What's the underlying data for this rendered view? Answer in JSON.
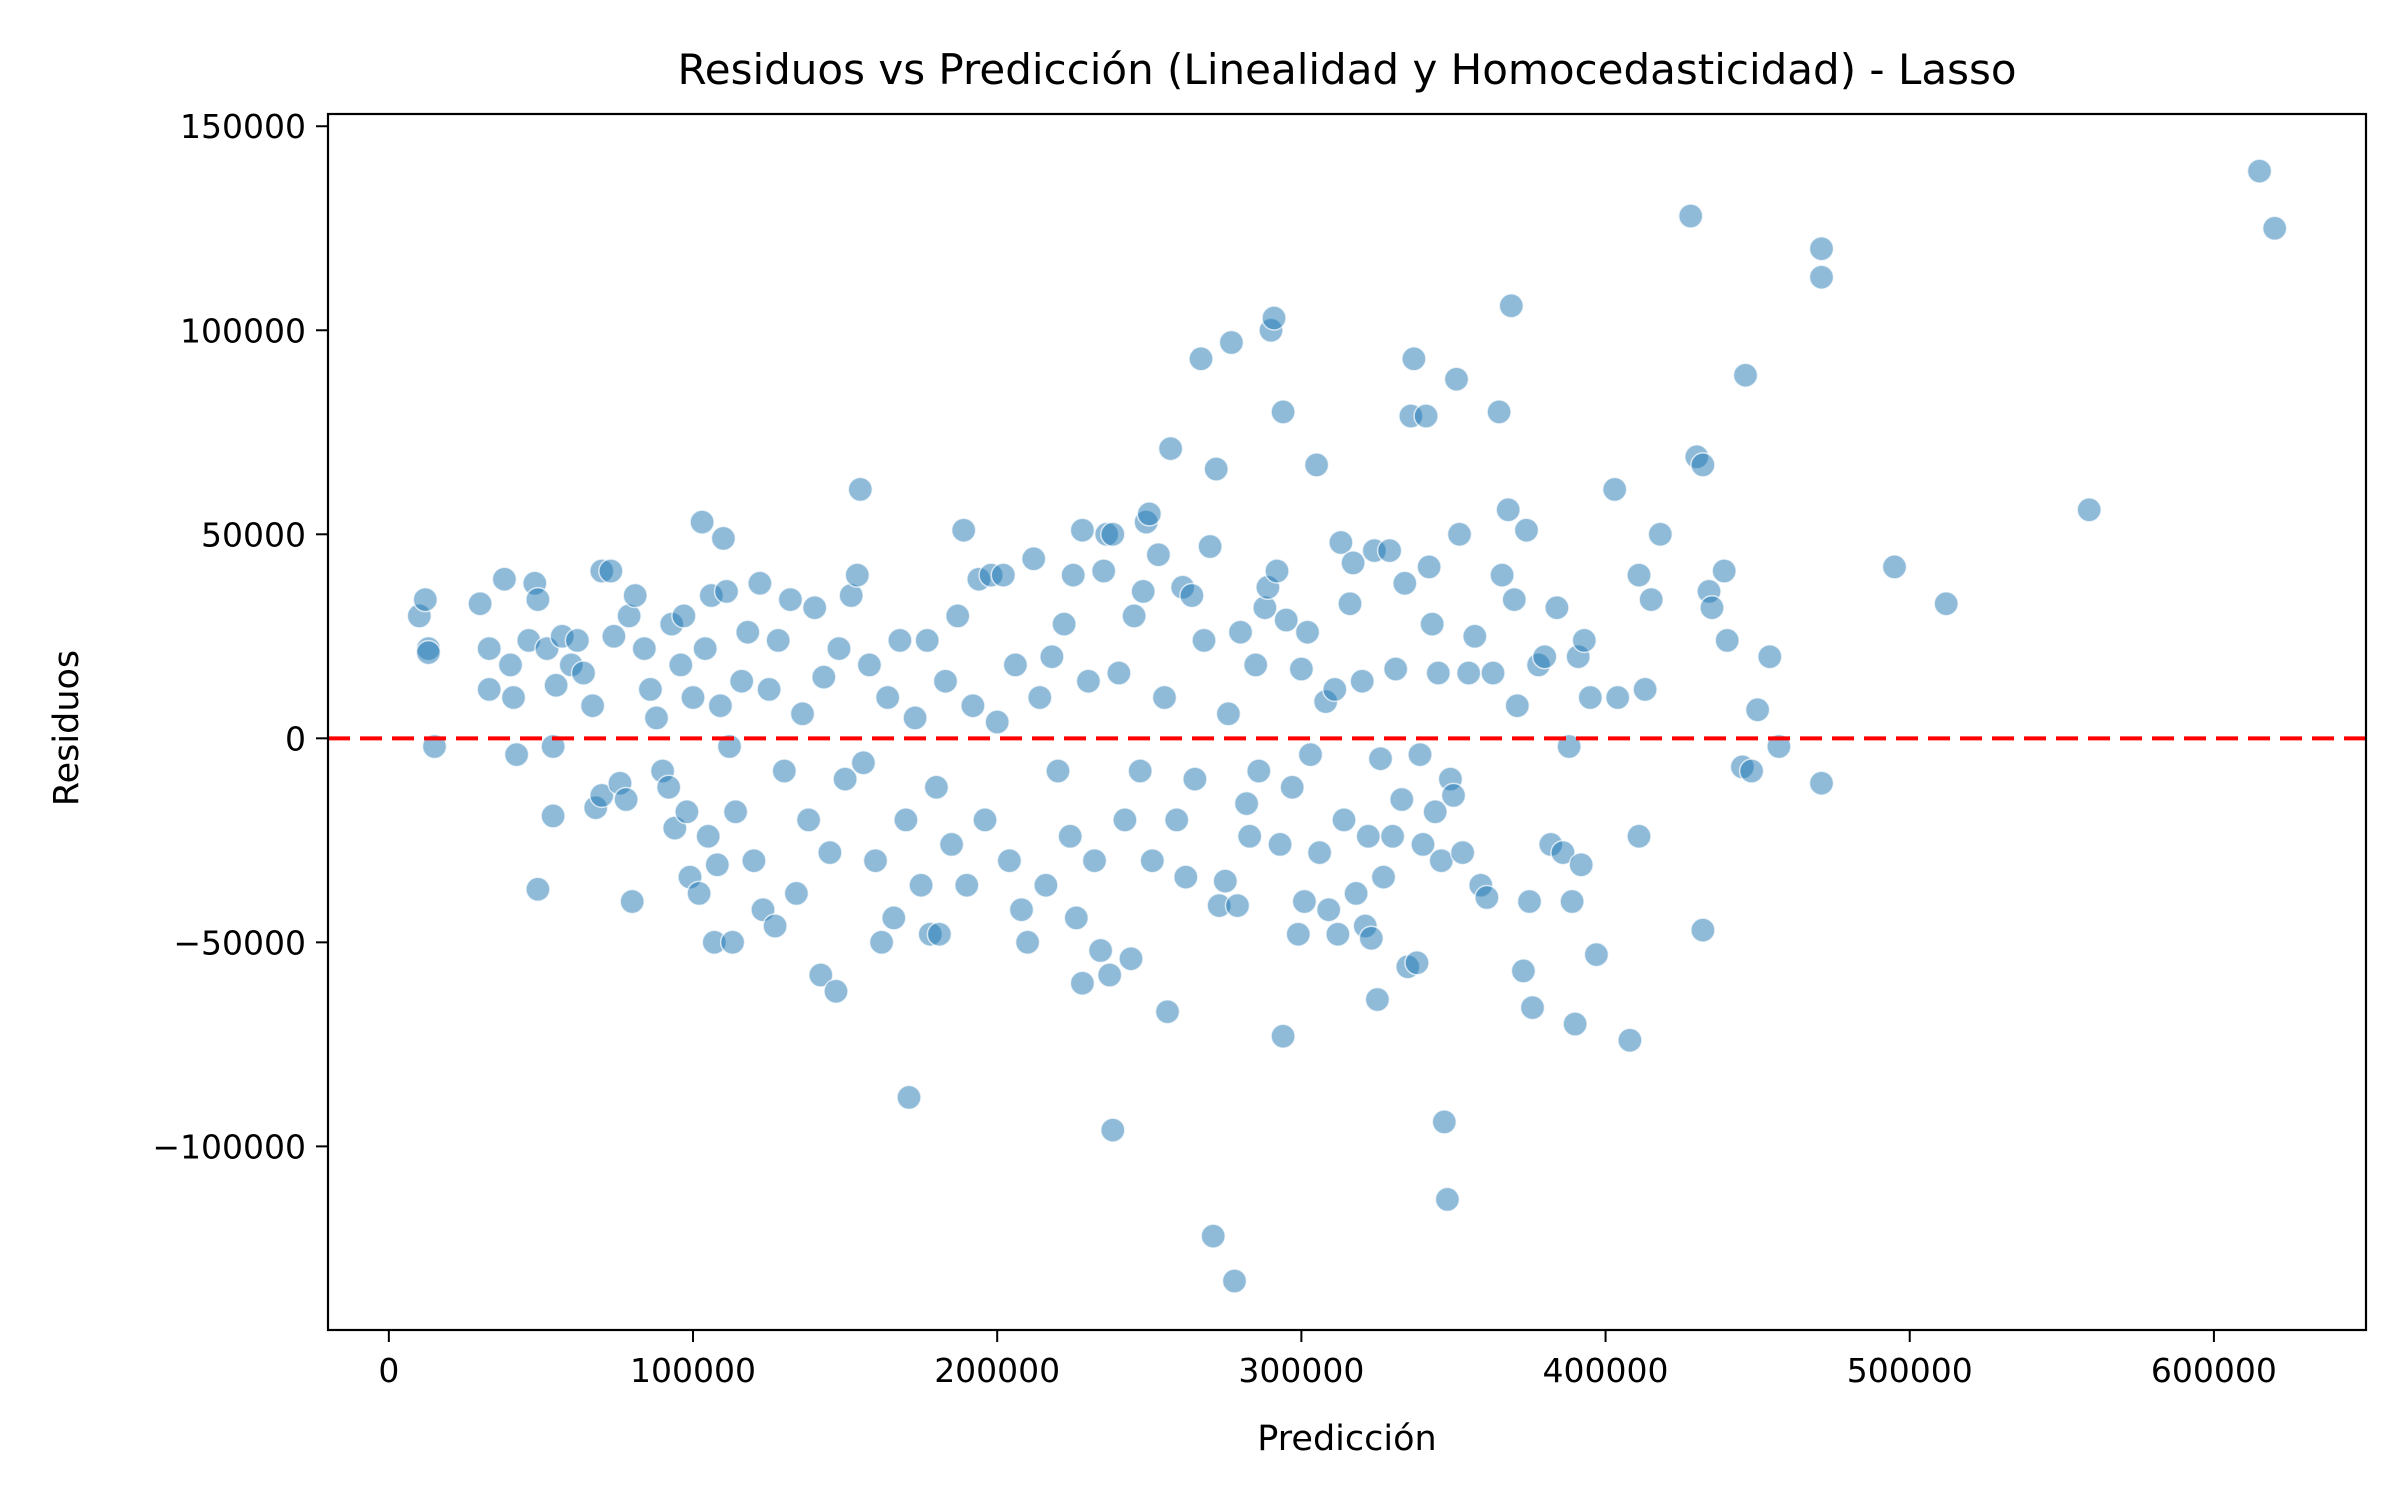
{
  "chart_data": {
    "type": "scatter",
    "title": "Residuos vs Predicción (Linealidad y Homocedasticidad) - Lasso",
    "xlabel": "Predicción",
    "ylabel": "Residuos",
    "xlim": [
      -20000,
      650000
    ],
    "ylim": [
      -145000,
      153000
    ],
    "xticks": [
      0,
      100000,
      200000,
      300000,
      400000,
      500000,
      600000
    ],
    "xtick_labels": [
      "0",
      "100000",
      "200000",
      "300000",
      "400000",
      "500000",
      "600000"
    ],
    "yticks": [
      -100000,
      -50000,
      0,
      50000,
      100000,
      150000
    ],
    "ytick_labels": [
      "−100000",
      "−50000",
      "0",
      "50000",
      "100000",
      "150000"
    ],
    "reference_line": {
      "y": 0,
      "color": "#ff0000",
      "style": "dashed"
    },
    "point_color": "#1f77b4",
    "grid": false,
    "legend": "none",
    "series": [
      {
        "points": [
          [
            10000,
            30000
          ],
          [
            12000,
            34000
          ],
          [
            13000,
            22000
          ],
          [
            13000,
            21000
          ],
          [
            15000,
            -2000
          ],
          [
            30000,
            33000
          ],
          [
            33000,
            22000
          ],
          [
            33000,
            12000
          ],
          [
            38000,
            39000
          ],
          [
            40000,
            18000
          ],
          [
            41000,
            10000
          ],
          [
            42000,
            -4000
          ],
          [
            46000,
            24000
          ],
          [
            48000,
            38000
          ],
          [
            49000,
            34000
          ],
          [
            49000,
            -37000
          ],
          [
            52000,
            22000
          ],
          [
            54000,
            -2000
          ],
          [
            54000,
            -19000
          ],
          [
            55000,
            13000
          ],
          [
            57000,
            25000
          ],
          [
            60000,
            18000
          ],
          [
            62000,
            24000
          ],
          [
            64000,
            16000
          ],
          [
            67000,
            8000
          ],
          [
            68000,
            -17000
          ],
          [
            70000,
            -14000
          ],
          [
            70000,
            41000
          ],
          [
            73000,
            41000
          ],
          [
            74000,
            25000
          ],
          [
            76000,
            -11000
          ],
          [
            78000,
            -15000
          ],
          [
            79000,
            30000
          ],
          [
            80000,
            -40000
          ],
          [
            81000,
            35000
          ],
          [
            84000,
            22000
          ],
          [
            86000,
            12000
          ],
          [
            88000,
            5000
          ],
          [
            90000,
            -8000
          ],
          [
            92000,
            -12000
          ],
          [
            93000,
            28000
          ],
          [
            94000,
            -22000
          ],
          [
            96000,
            18000
          ],
          [
            97000,
            30000
          ],
          [
            98000,
            -18000
          ],
          [
            99000,
            -34000
          ],
          [
            100000,
            10000
          ],
          [
            102000,
            -38000
          ],
          [
            103000,
            53000
          ],
          [
            104000,
            22000
          ],
          [
            105000,
            -24000
          ],
          [
            106000,
            35000
          ],
          [
            107000,
            -50000
          ],
          [
            108000,
            -31000
          ],
          [
            109000,
            8000
          ],
          [
            110000,
            49000
          ],
          [
            111000,
            36000
          ],
          [
            112000,
            -2000
          ],
          [
            113000,
            -50000
          ],
          [
            114000,
            -18000
          ],
          [
            116000,
            14000
          ],
          [
            118000,
            26000
          ],
          [
            120000,
            -30000
          ],
          [
            122000,
            38000
          ],
          [
            123000,
            -42000
          ],
          [
            125000,
            12000
          ],
          [
            127000,
            -46000
          ],
          [
            128000,
            24000
          ],
          [
            130000,
            -8000
          ],
          [
            132000,
            34000
          ],
          [
            134000,
            -38000
          ],
          [
            136000,
            6000
          ],
          [
            138000,
            -20000
          ],
          [
            140000,
            32000
          ],
          [
            142000,
            -58000
          ],
          [
            143000,
            15000
          ],
          [
            145000,
            -28000
          ],
          [
            147000,
            -62000
          ],
          [
            148000,
            22000
          ],
          [
            150000,
            -10000
          ],
          [
            152000,
            35000
          ],
          [
            154000,
            40000
          ],
          [
            155000,
            61000
          ],
          [
            156000,
            -6000
          ],
          [
            158000,
            18000
          ],
          [
            160000,
            -30000
          ],
          [
            162000,
            -50000
          ],
          [
            164000,
            10000
          ],
          [
            166000,
            -44000
          ],
          [
            168000,
            24000
          ],
          [
            170000,
            -20000
          ],
          [
            171000,
            -88000
          ],
          [
            173000,
            5000
          ],
          [
            175000,
            -36000
          ],
          [
            177000,
            24000
          ],
          [
            178000,
            -48000
          ],
          [
            180000,
            -12000
          ],
          [
            181000,
            -48000
          ],
          [
            183000,
            14000
          ],
          [
            185000,
            -26000
          ],
          [
            187000,
            30000
          ],
          [
            189000,
            51000
          ],
          [
            190000,
            -36000
          ],
          [
            192000,
            8000
          ],
          [
            194000,
            39000
          ],
          [
            196000,
            -20000
          ],
          [
            198000,
            40000
          ],
          [
            200000,
            4000
          ],
          [
            202000,
            40000
          ],
          [
            204000,
            -30000
          ],
          [
            206000,
            18000
          ],
          [
            208000,
            -42000
          ],
          [
            210000,
            -50000
          ],
          [
            212000,
            44000
          ],
          [
            214000,
            10000
          ],
          [
            216000,
            -36000
          ],
          [
            218000,
            20000
          ],
          [
            220000,
            -8000
          ],
          [
            222000,
            28000
          ],
          [
            224000,
            -24000
          ],
          [
            225000,
            40000
          ],
          [
            226000,
            -44000
          ],
          [
            228000,
            51000
          ],
          [
            228000,
            -60000
          ],
          [
            230000,
            14000
          ],
          [
            232000,
            -30000
          ],
          [
            234000,
            -52000
          ],
          [
            235000,
            41000
          ],
          [
            236000,
            50000
          ],
          [
            237000,
            -58000
          ],
          [
            238000,
            50000
          ],
          [
            238000,
            -96000
          ],
          [
            240000,
            16000
          ],
          [
            242000,
            -20000
          ],
          [
            244000,
            -54000
          ],
          [
            245000,
            30000
          ],
          [
            247000,
            -8000
          ],
          [
            248000,
            36000
          ],
          [
            249000,
            53000
          ],
          [
            250000,
            55000
          ],
          [
            251000,
            -30000
          ],
          [
            253000,
            45000
          ],
          [
            255000,
            10000
          ],
          [
            256000,
            -67000
          ],
          [
            257000,
            71000
          ],
          [
            259000,
            -20000
          ],
          [
            261000,
            37000
          ],
          [
            262000,
            -34000
          ],
          [
            264000,
            35000
          ],
          [
            265000,
            -10000
          ],
          [
            267000,
            93000
          ],
          [
            268000,
            24000
          ],
          [
            270000,
            47000
          ],
          [
            271000,
            -122000
          ],
          [
            272000,
            66000
          ],
          [
            273000,
            -41000
          ],
          [
            275000,
            -35000
          ],
          [
            276000,
            6000
          ],
          [
            277000,
            97000
          ],
          [
            278000,
            -133000
          ],
          [
            279000,
            -41000
          ],
          [
            280000,
            26000
          ],
          [
            282000,
            -16000
          ],
          [
            283000,
            -24000
          ],
          [
            285000,
            18000
          ],
          [
            286000,
            -8000
          ],
          [
            288000,
            32000
          ],
          [
            289000,
            37000
          ],
          [
            290000,
            100000
          ],
          [
            291000,
            103000
          ],
          [
            292000,
            41000
          ],
          [
            293000,
            -26000
          ],
          [
            294000,
            80000
          ],
          [
            294000,
            -73000
          ],
          [
            295000,
            29000
          ],
          [
            297000,
            -12000
          ],
          [
            299000,
            -48000
          ],
          [
            300000,
            17000
          ],
          [
            301000,
            -40000
          ],
          [
            302000,
            26000
          ],
          [
            303000,
            -4000
          ],
          [
            305000,
            67000
          ],
          [
            306000,
            -28000
          ],
          [
            308000,
            9000
          ],
          [
            309000,
            -42000
          ],
          [
            311000,
            12000
          ],
          [
            312000,
            -48000
          ],
          [
            313000,
            48000
          ],
          [
            314000,
            -20000
          ],
          [
            316000,
            33000
          ],
          [
            317000,
            43000
          ],
          [
            318000,
            -38000
          ],
          [
            320000,
            14000
          ],
          [
            321000,
            -46000
          ],
          [
            322000,
            -24000
          ],
          [
            323000,
            -49000
          ],
          [
            324000,
            46000
          ],
          [
            325000,
            -64000
          ],
          [
            326000,
            -5000
          ],
          [
            327000,
            -34000
          ],
          [
            329000,
            46000
          ],
          [
            330000,
            -24000
          ],
          [
            331000,
            17000
          ],
          [
            333000,
            -15000
          ],
          [
            334000,
            38000
          ],
          [
            335000,
            -56000
          ],
          [
            336000,
            79000
          ],
          [
            337000,
            93000
          ],
          [
            338000,
            -55000
          ],
          [
            339000,
            -4000
          ],
          [
            340000,
            -26000
          ],
          [
            341000,
            79000
          ],
          [
            342000,
            42000
          ],
          [
            343000,
            28000
          ],
          [
            344000,
            -18000
          ],
          [
            345000,
            16000
          ],
          [
            346000,
            -30000
          ],
          [
            347000,
            -94000
          ],
          [
            348000,
            -113000
          ],
          [
            349000,
            -10000
          ],
          [
            350000,
            -14000
          ],
          [
            351000,
            88000
          ],
          [
            352000,
            50000
          ],
          [
            353000,
            -28000
          ],
          [
            355000,
            16000
          ],
          [
            357000,
            25000
          ],
          [
            359000,
            -36000
          ],
          [
            361000,
            -39000
          ],
          [
            363000,
            16000
          ],
          [
            365000,
            80000
          ],
          [
            366000,
            40000
          ],
          [
            368000,
            56000
          ],
          [
            369000,
            106000
          ],
          [
            370000,
            34000
          ],
          [
            371000,
            8000
          ],
          [
            373000,
            -57000
          ],
          [
            374000,
            51000
          ],
          [
            375000,
            -40000
          ],
          [
            376000,
            -66000
          ],
          [
            378000,
            18000
          ],
          [
            380000,
            20000
          ],
          [
            382000,
            -26000
          ],
          [
            384000,
            32000
          ],
          [
            386000,
            -28000
          ],
          [
            388000,
            -2000
          ],
          [
            389000,
            -40000
          ],
          [
            390000,
            -70000
          ],
          [
            391000,
            20000
          ],
          [
            392000,
            -31000
          ],
          [
            393000,
            24000
          ],
          [
            395000,
            10000
          ],
          [
            397000,
            -53000
          ],
          [
            403000,
            61000
          ],
          [
            404000,
            10000
          ],
          [
            408000,
            -74000
          ],
          [
            411000,
            40000
          ],
          [
            411000,
            -24000
          ],
          [
            413000,
            12000
          ],
          [
            415000,
            34000
          ],
          [
            418000,
            50000
          ],
          [
            428000,
            128000
          ],
          [
            430000,
            69000
          ],
          [
            432000,
            67000
          ],
          [
            432000,
            -47000
          ],
          [
            434000,
            36000
          ],
          [
            435000,
            32000
          ],
          [
            439000,
            41000
          ],
          [
            440000,
            24000
          ],
          [
            445000,
            -7000
          ],
          [
            446000,
            89000
          ],
          [
            448000,
            -8000
          ],
          [
            450000,
            7000
          ],
          [
            454000,
            20000
          ],
          [
            457000,
            -2000
          ],
          [
            471000,
            120000
          ],
          [
            471000,
            113000
          ],
          [
            471000,
            -11000
          ],
          [
            495000,
            42000
          ],
          [
            512000,
            33000
          ],
          [
            559000,
            56000
          ],
          [
            615000,
            139000
          ],
          [
            620000,
            125000
          ]
        ]
      }
    ]
  }
}
